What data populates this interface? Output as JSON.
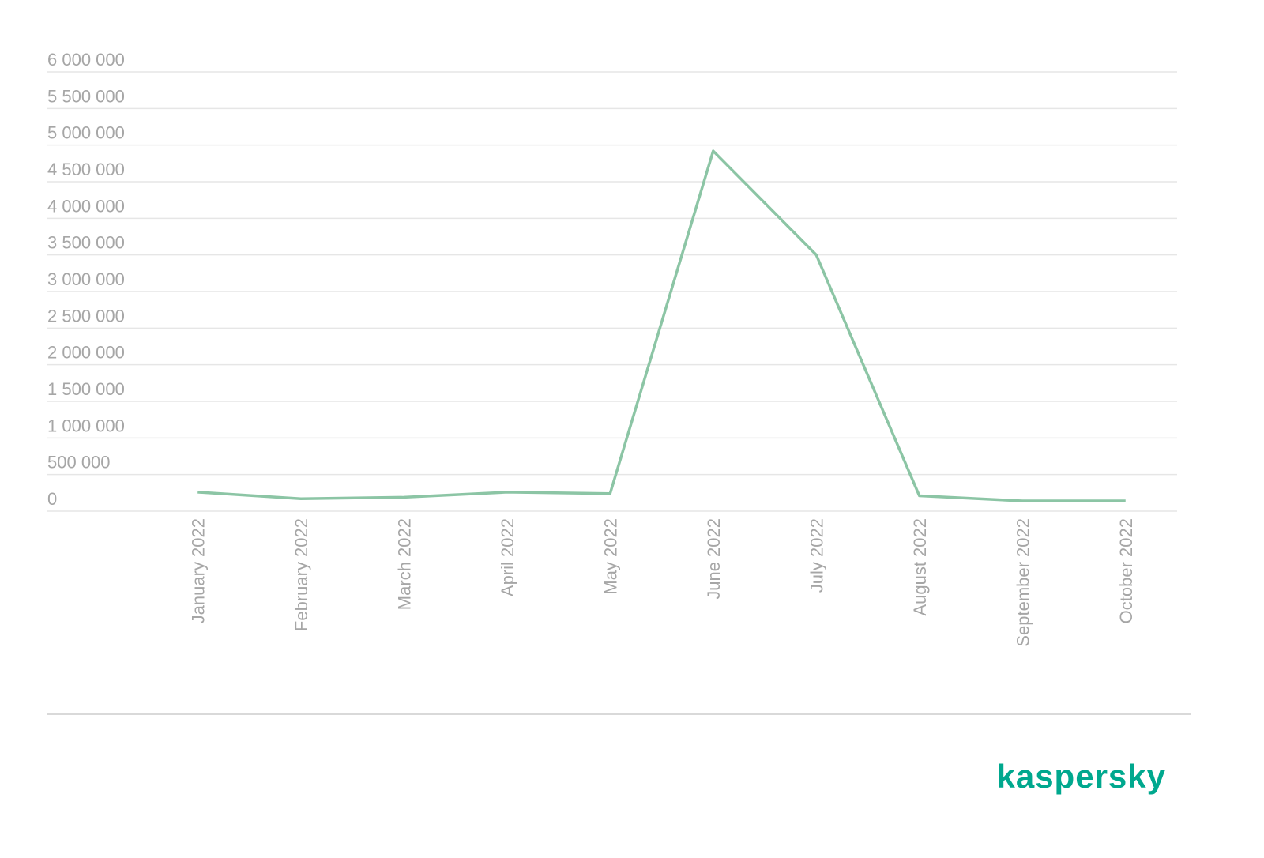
{
  "chart_data": {
    "type": "line",
    "categories": [
      "January 2022",
      "February 2022",
      "March 2022",
      "April 2022",
      "May 2022",
      "June 2022",
      "July 2022",
      "August 2022",
      "September 2022",
      "October 2022"
    ],
    "series": [
      {
        "color": "#8cc5a5",
        "values": [
          260000,
          170000,
          190000,
          260000,
          240000,
          4920000,
          3500000,
          210000,
          140000,
          140000
        ]
      }
    ],
    "ylim": [
      0,
      6000000
    ],
    "yticks": [
      0,
      {
        "value": 500000,
        "label": "500 000"
      },
      {
        "value": 1000000,
        "label": "1 000 000"
      },
      {
        "value": 1500000,
        "label": "1 500 000"
      },
      {
        "value": 2000000,
        "label": "2 000 000"
      },
      {
        "value": 2500000,
        "label": "2 500 000"
      },
      {
        "value": 3000000,
        "label": "3 000 000"
      },
      {
        "value": 3500000,
        "label": "3 500 000"
      },
      {
        "value": 4000000,
        "label": "4 000 000"
      },
      {
        "value": 4500000,
        "label": "4 500 000"
      },
      {
        "value": 5000000,
        "label": "5 000 000"
      },
      {
        "value": 5500000,
        "label": "5 500 000"
      },
      {
        "value": 6000000,
        "label": "6 000 000"
      }
    ],
    "grid": true
  },
  "logo": "kaspersky"
}
